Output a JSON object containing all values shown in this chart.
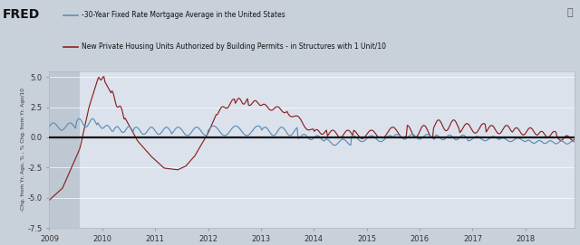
{
  "legend_blue": "-30-Year Fixed Rate Mortgage Average in the United States",
  "legend_red": "New Private Housing Units Authorized by Building Permits - in Structures with 1 Unit/10",
  "ylabel": "-Chg. from Yr. Ago, % , % Chg. from Yr. Ago/10",
  "ylim": [
    -7.5,
    5.5
  ],
  "yticks": [
    -7.5,
    -5.0,
    -2.5,
    0.0,
    2.5,
    5.0
  ],
  "xlim_start": 2009.0,
  "xlim_end": 2018.92,
  "xticks": [
    2009,
    2010,
    2011,
    2012,
    2013,
    2014,
    2015,
    2016,
    2017,
    2018
  ],
  "bg_color": "#c8d0da",
  "plot_bg_color": "#dbe2eb",
  "shaded_region_end": 2009.58,
  "blue_color": "#5b8db8",
  "red_color": "#8b2222",
  "zero_line_color": "#111111",
  "header_bg": "#bec8d2"
}
